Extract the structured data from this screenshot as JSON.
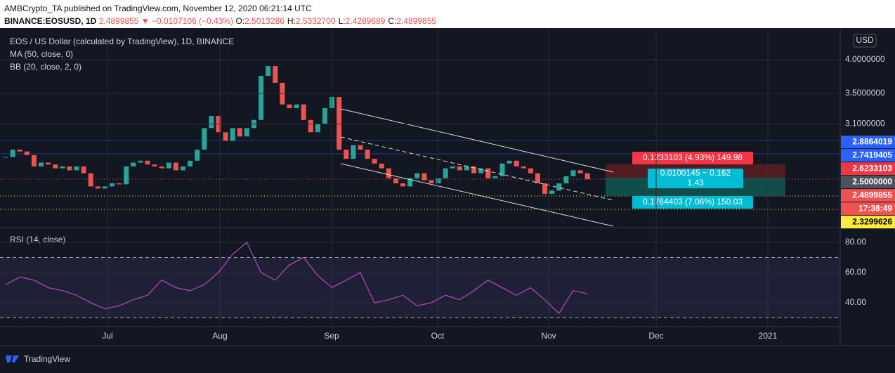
{
  "header": {
    "publisher": "AMBCrypto_TA published on TradingView.com, November 12, 2020 06:21:14 UTC",
    "symbol": "BINANCE:EOSUSD, 1D",
    "price": "2.4899855",
    "change": "▼ −0.0107106 (−0.43%)",
    "ohlc": [
      {
        "label": "O:",
        "value": "2.5013286"
      },
      {
        "label": "H:",
        "value": "2.5332700"
      },
      {
        "label": "L:",
        "value": "2.4289689"
      },
      {
        "label": "C:",
        "value": "2.4899855"
      }
    ]
  },
  "chart_data": {
    "type": "candlestick",
    "title": "EOS / US Dollar (calculated by TradingView), 1D, BINANCE",
    "indicators": [
      "MA (50, close, 0)",
      "BB (20, close, 2, 0)"
    ],
    "currency": "USD",
    "log_scale": true,
    "up_color": "#26a69a",
    "down_color": "#ef5350",
    "closes": [
      2.72,
      2.8,
      2.78,
      2.74,
      2.62,
      2.66,
      2.64,
      2.6,
      2.62,
      2.58,
      2.62,
      2.55,
      2.42,
      2.4,
      2.42,
      2.45,
      2.44,
      2.62,
      2.66,
      2.68,
      2.64,
      2.62,
      2.6,
      2.66,
      2.58,
      2.62,
      2.68,
      2.8,
      3.05,
      3.2,
      3.0,
      2.9,
      3.05,
      2.95,
      3.05,
      3.15,
      3.75,
      3.9,
      3.65,
      3.35,
      3.3,
      3.35,
      3.15,
      3.0,
      3.1,
      3.3,
      3.45,
      2.8,
      2.7,
      2.85,
      2.8,
      2.7,
      2.65,
      2.6,
      2.5,
      2.45,
      2.42,
      2.5,
      2.55,
      2.48,
      2.45,
      2.5,
      2.6,
      2.62,
      2.58,
      2.62,
      2.55,
      2.6,
      2.5,
      2.52,
      2.65,
      2.68,
      2.62,
      2.6,
      2.55,
      2.45,
      2.35,
      2.38,
      2.45,
      2.52,
      2.58,
      2.55,
      2.49
    ],
    "yticks": [
      {
        "value": 4,
        "label": "4.0000000"
      },
      {
        "value": 3.5,
        "label": "3.5000000"
      },
      {
        "value": 3.1,
        "label": "3.1000000"
      }
    ],
    "price_flags": [
      {
        "value": 2.8864019,
        "label": "2.8864019",
        "color": "#2962ff"
      },
      {
        "value": 2.7419405,
        "label": "2.7419405",
        "color": "#2962ff"
      },
      {
        "value": 2.6233103,
        "label": "2.6233103",
        "color": "#f23645"
      },
      {
        "value": 2.5,
        "label": "2.5000000",
        "color": "#4c525e"
      },
      {
        "value": 2.4899855,
        "label": "2.4899855",
        "color": "#ef5350"
      },
      {
        "label": "17:38:49",
        "color": "#ef5350"
      },
      {
        "value": 2.3299626,
        "label": "2.3299626",
        "color": "#ffeb3b"
      }
    ],
    "xticks": [
      "Jul",
      "Aug",
      "Sep",
      "Oct",
      "Nov",
      "Dec",
      "2021"
    ],
    "annotations": {
      "target": "0.1233103 (4.93%) 149.98",
      "ratio": "0.0100145 ~ 0.162",
      "ratio_value": "1.43",
      "stop": "0.1764403 (7.06%) 150.03"
    }
  },
  "rsi": {
    "title": "RSI (14, close)",
    "color": "#ab47bc",
    "values": [
      52,
      57,
      55,
      50,
      48,
      45,
      40,
      36,
      38,
      42,
      45,
      55,
      50,
      48,
      52,
      60,
      72,
      80,
      60,
      55,
      65,
      70,
      58,
      50,
      55,
      60,
      40,
      42,
      45,
      38,
      40,
      45,
      42,
      48,
      55,
      50,
      45,
      50,
      42,
      33,
      48,
      46
    ],
    "ylim": [
      20,
      90
    ],
    "yticks": [
      {
        "value": 80,
        "label": "80.00"
      },
      {
        "value": 60,
        "label": "60.00"
      },
      {
        "value": 40,
        "label": "40.00"
      }
    ],
    "bands": [
      70,
      30
    ]
  },
  "footer": "TradingView"
}
